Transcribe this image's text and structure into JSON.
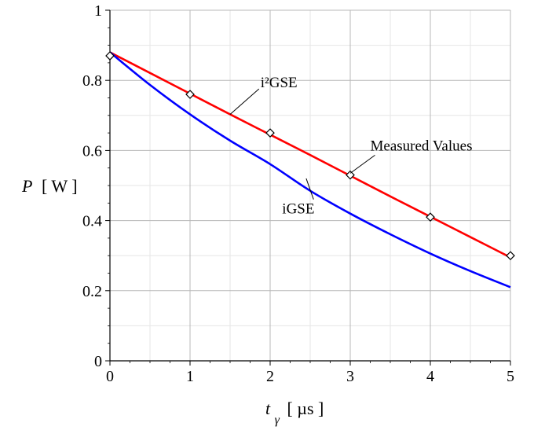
{
  "chart_data": {
    "type": "line",
    "xlabel": {
      "var": "t",
      "sub": "γ",
      "unit": "[ µs ]"
    },
    "ylabel": {
      "var": "P",
      "unit": "[ W ]"
    },
    "xlim": [
      0,
      5
    ],
    "ylim": [
      0,
      1
    ],
    "x_ticks": [
      0,
      1,
      2,
      3,
      4,
      5
    ],
    "y_ticks": [
      0,
      0.2,
      0.4,
      0.6,
      0.8,
      1
    ],
    "grid": true,
    "series": [
      {
        "name": "i²GSE",
        "kind": "line",
        "color": "#ff0000",
        "x": [
          0,
          0.5,
          1,
          1.5,
          2,
          2.5,
          3,
          3.5,
          4,
          4.5,
          5
        ],
        "y": [
          0.88,
          0.821,
          0.762,
          0.703,
          0.645,
          0.587,
          0.528,
          0.469,
          0.411,
          0.353,
          0.295
        ]
      },
      {
        "name": "iGSE",
        "kind": "line",
        "color": "#0000ff",
        "x": [
          0,
          0.5,
          1,
          1.5,
          2,
          2.5,
          3,
          3.5,
          4,
          4.5,
          5
        ],
        "y": [
          0.88,
          0.787,
          0.703,
          0.628,
          0.561,
          0.485,
          0.42,
          0.361,
          0.306,
          0.256,
          0.21
        ]
      },
      {
        "name": "Measured Values",
        "kind": "scatter",
        "marker": "diamond",
        "color": "#000000",
        "x": [
          0,
          1,
          2,
          3,
          4,
          5
        ],
        "y": [
          0.87,
          0.76,
          0.65,
          0.53,
          0.41,
          0.3
        ]
      }
    ],
    "annotations": [
      {
        "text": "i²GSE",
        "target": [
          1.5,
          0.703
        ],
        "anchor_data": [
          1.88,
          0.78
        ]
      },
      {
        "text": "Measured Values",
        "target": [
          3.0,
          0.535
        ],
        "anchor_data": [
          3.25,
          0.6
        ]
      },
      {
        "text": "iGSE",
        "target": [
          2.45,
          0.52
        ],
        "anchor_data": [
          2.15,
          0.42
        ]
      }
    ]
  }
}
